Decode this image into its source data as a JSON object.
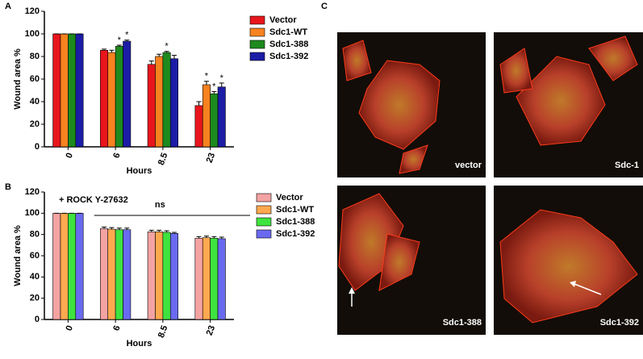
{
  "chart_data": [
    {
      "type": "bar",
      "panel": "A",
      "x_label": "Hours",
      "y_label": "Wound area %",
      "categories": [
        "0",
        "6",
        "8.5",
        "23"
      ],
      "ylim": [
        0,
        120
      ],
      "yticks": [
        0,
        20,
        40,
        60,
        80,
        100,
        120
      ],
      "series": [
        {
          "name": "Vector",
          "color": "#e8161c",
          "values": [
            100,
            85.5,
            73,
            36.5
          ],
          "errors": [
            0,
            1,
            3,
            3.5
          ],
          "significance": [
            null,
            null,
            null,
            null
          ]
        },
        {
          "name": "Sdc1-WT",
          "color": "#f7821f",
          "values": [
            100,
            83.5,
            80,
            55
          ],
          "errors": [
            0,
            2,
            2,
            3
          ],
          "significance": [
            null,
            null,
            null,
            "*"
          ]
        },
        {
          "name": "Sdc1-388",
          "color": "#1d8a1d",
          "values": [
            100,
            89,
            83.5,
            47
          ],
          "errors": [
            0,
            1,
            1,
            2
          ],
          "significance": [
            null,
            "*",
            "*",
            "*"
          ]
        },
        {
          "name": "Sdc1-392",
          "color": "#1c1ca6",
          "values": [
            100,
            93.5,
            78,
            53
          ],
          "errors": [
            0,
            1,
            3,
            3.5
          ],
          "significance": [
            null,
            "*",
            null,
            "*"
          ]
        }
      ]
    },
    {
      "type": "bar",
      "panel": "B",
      "x_label": "Hours",
      "y_label": "Wound area %",
      "annotation": "+ ROCK Y-27632",
      "comparison_label": "ns",
      "categories": [
        "0",
        "6",
        "8.5",
        "23"
      ],
      "ylim": [
        0,
        120
      ],
      "yticks": [
        0,
        20,
        40,
        60,
        80,
        100,
        120
      ],
      "series": [
        {
          "name": "Vector",
          "color": "#f4a3a3",
          "values": [
            100,
            85.5,
            82.5,
            76.5
          ],
          "errors": [
            0,
            1.5,
            1.5,
            1.5
          ]
        },
        {
          "name": "Sdc1-WT",
          "color": "#ffa94f",
          "values": [
            100,
            85,
            82.5,
            77
          ],
          "errors": [
            0,
            1.5,
            1.5,
            1.5
          ]
        },
        {
          "name": "Sdc1-388",
          "color": "#3fe33f",
          "values": [
            100,
            84.5,
            82,
            76.5
          ],
          "errors": [
            0,
            1.5,
            1.5,
            1.5
          ]
        },
        {
          "name": "Sdc1-392",
          "color": "#6a6af0",
          "values": [
            100,
            84.5,
            81,
            76
          ],
          "errors": [
            0,
            1.5,
            1,
            1.5
          ]
        }
      ]
    }
  ],
  "images": {
    "panel": "C",
    "labels": [
      "vector",
      "Sdc-1",
      "Sdc1-388",
      "Sdc1-392"
    ]
  }
}
